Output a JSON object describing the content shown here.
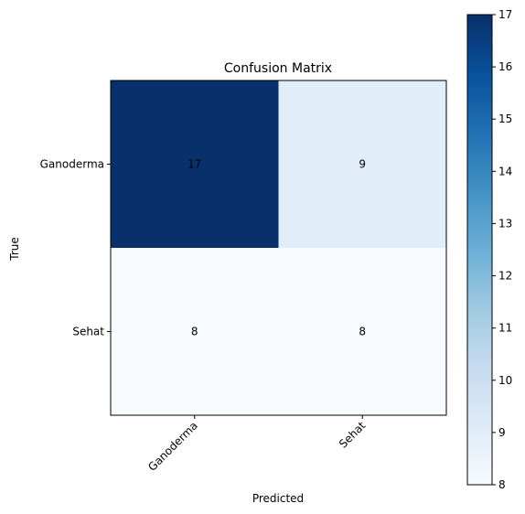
{
  "chart_data": {
    "type": "heatmap",
    "title": "Confusion Matrix",
    "xlabel": "Predicted",
    "ylabel": "True",
    "x_categories": [
      "Ganoderma",
      "Sehat"
    ],
    "y_categories": [
      "Ganoderma",
      "Sehat"
    ],
    "matrix": [
      [
        17,
        9
      ],
      [
        8,
        8
      ]
    ],
    "colormap": "Blues",
    "colorbar": {
      "min": 8,
      "max": 17,
      "ticks": [
        "8",
        "9",
        "10",
        "11",
        "12",
        "13",
        "14",
        "15",
        "16",
        "17"
      ]
    },
    "grid": false,
    "x_tick_rotation_deg": 45
  }
}
